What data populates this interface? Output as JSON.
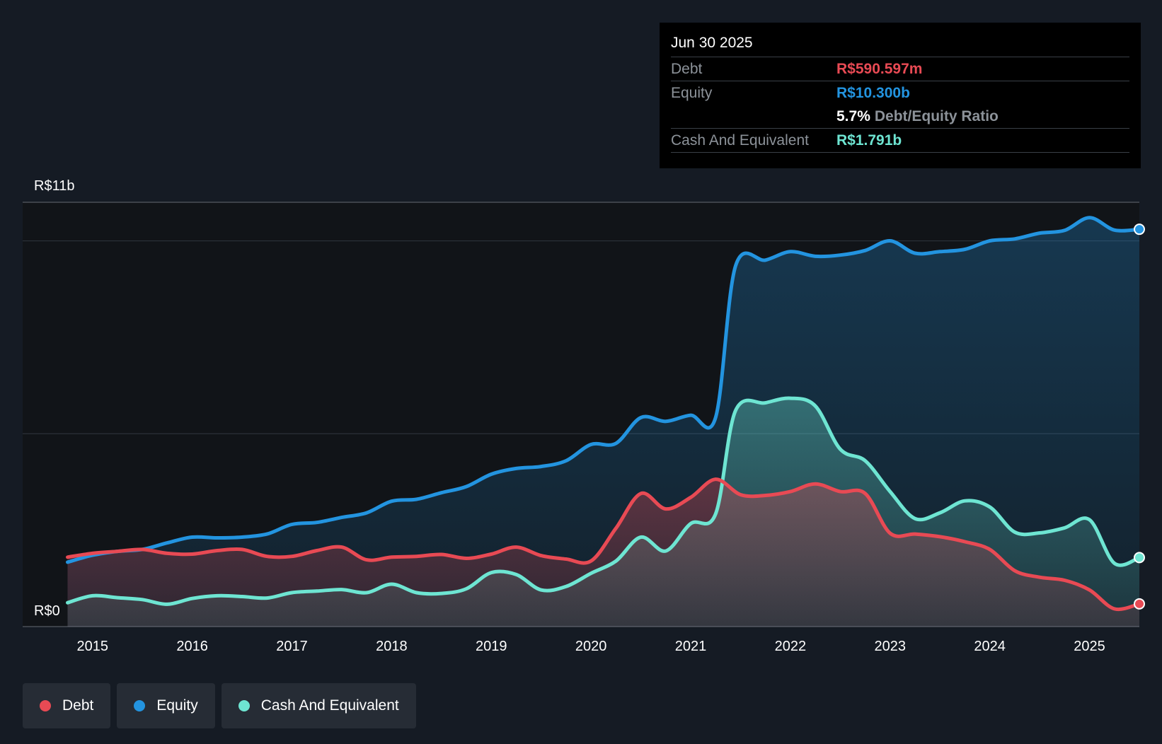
{
  "colors": {
    "background": "#151b24",
    "plot_background": "#111418",
    "debt": "#e84a54",
    "equity": "#2394e0",
    "cash": "#6ee5d2",
    "muted": "#8c9299"
  },
  "tooltip": {
    "date": "Jun 30 2025",
    "debt_label": "Debt",
    "debt_value": "R$590.597m",
    "equity_label": "Equity",
    "equity_value": "R$10.300b",
    "ratio_value": "5.7%",
    "ratio_label": "Debt/Equity Ratio",
    "cash_label": "Cash And Equivalent",
    "cash_value": "R$1.791b"
  },
  "legend": {
    "debt": "Debt",
    "equity": "Equity",
    "cash": "Cash And Equivalent"
  },
  "chart_data": {
    "type": "area",
    "title": "",
    "y_top_label": "R$11b",
    "y_bottom_label": "R$0",
    "ylim": [
      0,
      11
    ],
    "xlim": [
      2014.75,
      2025.5
    ],
    "x_ticks": [
      2015,
      2016,
      2017,
      2018,
      2019,
      2020,
      2021,
      2022,
      2023,
      2024,
      2025
    ],
    "x_tick_labels": [
      "2015",
      "2016",
      "2017",
      "2018",
      "2019",
      "2020",
      "2021",
      "2022",
      "2023",
      "2024",
      "2025"
    ],
    "gridlines": [
      0,
      5,
      10,
      11
    ],
    "series": [
      {
        "name": "Debt",
        "key": "debt",
        "points": [
          [
            2014.75,
            1.8
          ],
          [
            2015.0,
            1.9
          ],
          [
            2015.25,
            1.95
          ],
          [
            2015.5,
            2.0
          ],
          [
            2015.75,
            1.9
          ],
          [
            2016.0,
            1.88
          ],
          [
            2016.25,
            1.97
          ],
          [
            2016.5,
            2.0
          ],
          [
            2016.75,
            1.82
          ],
          [
            2017.0,
            1.82
          ],
          [
            2017.25,
            1.97
          ],
          [
            2017.5,
            2.06
          ],
          [
            2017.75,
            1.73
          ],
          [
            2018.0,
            1.8
          ],
          [
            2018.25,
            1.82
          ],
          [
            2018.5,
            1.87
          ],
          [
            2018.75,
            1.77
          ],
          [
            2019.0,
            1.88
          ],
          [
            2019.25,
            2.06
          ],
          [
            2019.5,
            1.84
          ],
          [
            2019.75,
            1.75
          ],
          [
            2020.0,
            1.7
          ],
          [
            2020.25,
            2.55
          ],
          [
            2020.5,
            3.45
          ],
          [
            2020.75,
            3.05
          ],
          [
            2021.0,
            3.35
          ],
          [
            2021.25,
            3.82
          ],
          [
            2021.5,
            3.42
          ],
          [
            2021.75,
            3.4
          ],
          [
            2022.0,
            3.5
          ],
          [
            2022.25,
            3.7
          ],
          [
            2022.5,
            3.5
          ],
          [
            2022.75,
            3.45
          ],
          [
            2023.0,
            2.42
          ],
          [
            2023.25,
            2.4
          ],
          [
            2023.5,
            2.33
          ],
          [
            2023.75,
            2.2
          ],
          [
            2024.0,
            2.0
          ],
          [
            2024.25,
            1.45
          ],
          [
            2024.5,
            1.28
          ],
          [
            2024.75,
            1.2
          ],
          [
            2025.0,
            0.95
          ],
          [
            2025.25,
            0.46
          ],
          [
            2025.5,
            0.59
          ]
        ]
      },
      {
        "name": "Equity",
        "key": "equity",
        "points": [
          [
            2014.75,
            1.67
          ],
          [
            2015.0,
            1.85
          ],
          [
            2015.25,
            1.95
          ],
          [
            2015.5,
            2.0
          ],
          [
            2015.75,
            2.17
          ],
          [
            2016.0,
            2.32
          ],
          [
            2016.25,
            2.3
          ],
          [
            2016.5,
            2.32
          ],
          [
            2016.75,
            2.4
          ],
          [
            2017.0,
            2.65
          ],
          [
            2017.25,
            2.7
          ],
          [
            2017.5,
            2.83
          ],
          [
            2017.75,
            2.95
          ],
          [
            2018.0,
            3.25
          ],
          [
            2018.25,
            3.3
          ],
          [
            2018.5,
            3.47
          ],
          [
            2018.75,
            3.63
          ],
          [
            2019.0,
            3.95
          ],
          [
            2019.25,
            4.1
          ],
          [
            2019.5,
            4.15
          ],
          [
            2019.75,
            4.3
          ],
          [
            2020.0,
            4.72
          ],
          [
            2020.25,
            4.75
          ],
          [
            2020.5,
            5.42
          ],
          [
            2020.75,
            5.32
          ],
          [
            2021.0,
            5.48
          ],
          [
            2021.25,
            5.42
          ],
          [
            2021.45,
            9.35
          ],
          [
            2021.75,
            9.5
          ],
          [
            2022.0,
            9.72
          ],
          [
            2022.25,
            9.6
          ],
          [
            2022.5,
            9.63
          ],
          [
            2022.75,
            9.75
          ],
          [
            2023.0,
            10.0
          ],
          [
            2023.25,
            9.68
          ],
          [
            2023.5,
            9.72
          ],
          [
            2023.75,
            9.78
          ],
          [
            2024.0,
            10.0
          ],
          [
            2024.25,
            10.05
          ],
          [
            2024.5,
            10.2
          ],
          [
            2024.75,
            10.27
          ],
          [
            2025.0,
            10.6
          ],
          [
            2025.25,
            10.28
          ],
          [
            2025.5,
            10.3
          ]
        ]
      },
      {
        "name": "Cash And Equivalent",
        "key": "cash",
        "points": [
          [
            2014.75,
            0.62
          ],
          [
            2015.0,
            0.8
          ],
          [
            2015.25,
            0.75
          ],
          [
            2015.5,
            0.7
          ],
          [
            2015.75,
            0.58
          ],
          [
            2016.0,
            0.73
          ],
          [
            2016.25,
            0.8
          ],
          [
            2016.5,
            0.78
          ],
          [
            2016.75,
            0.74
          ],
          [
            2017.0,
            0.88
          ],
          [
            2017.25,
            0.92
          ],
          [
            2017.5,
            0.96
          ],
          [
            2017.75,
            0.88
          ],
          [
            2018.0,
            1.1
          ],
          [
            2018.25,
            0.88
          ],
          [
            2018.5,
            0.86
          ],
          [
            2018.75,
            0.98
          ],
          [
            2019.0,
            1.4
          ],
          [
            2019.25,
            1.35
          ],
          [
            2019.5,
            0.95
          ],
          [
            2019.75,
            1.04
          ],
          [
            2020.0,
            1.38
          ],
          [
            2020.25,
            1.7
          ],
          [
            2020.5,
            2.32
          ],
          [
            2020.75,
            1.96
          ],
          [
            2021.0,
            2.67
          ],
          [
            2021.25,
            2.92
          ],
          [
            2021.45,
            5.6
          ],
          [
            2021.75,
            5.8
          ],
          [
            2022.0,
            5.92
          ],
          [
            2022.25,
            5.72
          ],
          [
            2022.5,
            4.6
          ],
          [
            2022.75,
            4.3
          ],
          [
            2023.0,
            3.5
          ],
          [
            2023.25,
            2.8
          ],
          [
            2023.5,
            2.95
          ],
          [
            2023.75,
            3.26
          ],
          [
            2024.0,
            3.1
          ],
          [
            2024.25,
            2.45
          ],
          [
            2024.5,
            2.43
          ],
          [
            2024.75,
            2.56
          ],
          [
            2025.0,
            2.77
          ],
          [
            2025.25,
            1.64
          ],
          [
            2025.5,
            1.79
          ]
        ]
      }
    ]
  }
}
